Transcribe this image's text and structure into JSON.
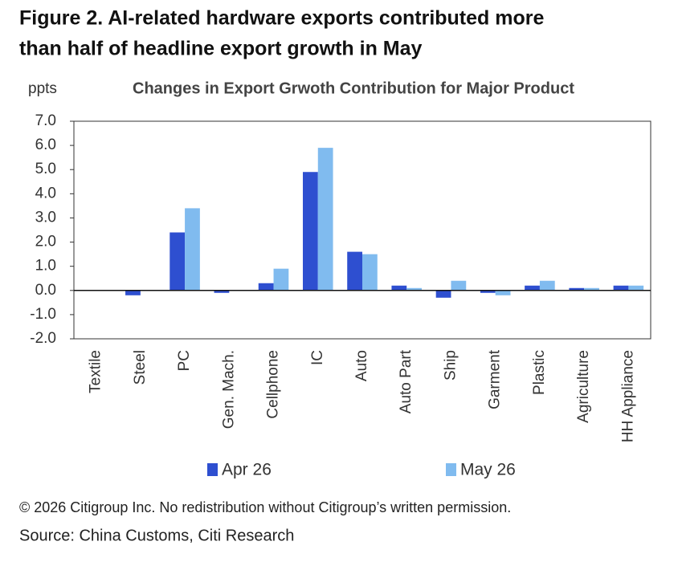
{
  "chart_data": {
    "type": "bar",
    "heading": [
      "Figure 2. AI-related hardware exports contributed more",
      "than half of headline export growth in May"
    ],
    "title": "Changes in Export Grwoth Contribution for Major Product",
    "y_label": "ppts",
    "categories": [
      "Textile",
      "Steel",
      "PC",
      "Gen. Mach.",
      "Cellphone",
      "IC",
      "Auto",
      "Auto Part",
      "Ship",
      "Garment",
      "Plastic",
      "Agriculture",
      "HH Appliance"
    ],
    "series": [
      {
        "name": "Apr 26",
        "color": "#2e4fd0",
        "values": [
          0.0,
          -0.2,
          2.4,
          -0.1,
          0.3,
          4.9,
          1.6,
          0.2,
          -0.3,
          -0.1,
          0.2,
          0.1,
          0.2
        ]
      },
      {
        "name": "May 26",
        "color": "#80bbef",
        "values": [
          0.0,
          0.0,
          3.4,
          0.0,
          0.9,
          5.9,
          1.5,
          0.1,
          0.4,
          -0.2,
          0.4,
          0.1,
          0.2
        ]
      }
    ],
    "ylim": [
      -2,
      7
    ],
    "yticks": [
      {
        "value": -2,
        "label": "-2.0"
      },
      {
        "value": -1,
        "label": "-1.0"
      },
      {
        "value": 0,
        "label": "0.0"
      },
      {
        "value": 1,
        "label": "1.0"
      },
      {
        "value": 2,
        "label": "2.0"
      },
      {
        "value": 3,
        "label": "3.0"
      },
      {
        "value": 4,
        "label": "4.0"
      },
      {
        "value": 5,
        "label": "5.0"
      },
      {
        "value": 6,
        "label": "6.0"
      },
      {
        "value": 7,
        "label": "7.0"
      }
    ],
    "grid": false,
    "legend": "bottom",
    "footer": [
      "© 2026 Citigroup Inc. No redistribution without Citigroup’s written permission.",
      "Source: China Customs, Citi Research"
    ]
  }
}
